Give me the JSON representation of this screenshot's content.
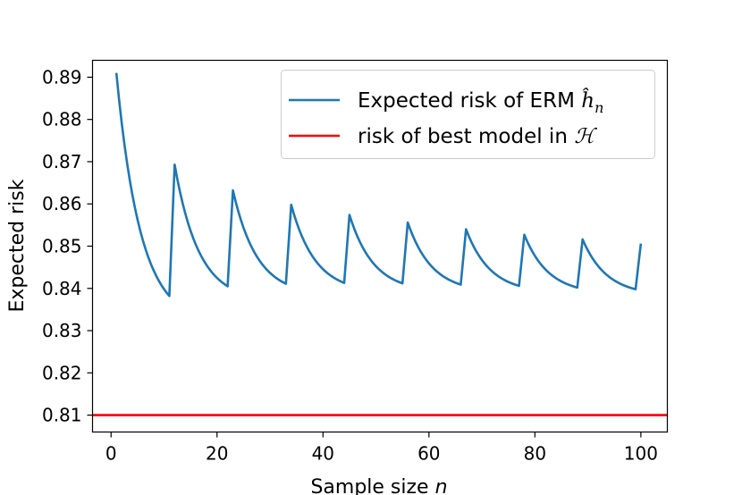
{
  "chart_data": {
    "type": "line",
    "title": "",
    "xlabel": "Sample size",
    "xlabel_var": "n",
    "ylabel": "Expected risk",
    "xlim": [
      -3.5,
      105
    ],
    "ylim": [
      0.806,
      0.894
    ],
    "xticks": [
      0,
      20,
      40,
      60,
      80,
      100
    ],
    "yticks": [
      0.81,
      0.82,
      0.83,
      0.84,
      0.85,
      0.86,
      0.87,
      0.88,
      0.89
    ],
    "grid": false,
    "legend_position": "top-right",
    "series": [
      {
        "name": "Expected risk of ERM",
        "name_math": "ĥ",
        "name_sub": "n",
        "color": "#1f77b4",
        "cycles": [
          {
            "x_start": 1,
            "x_end": 11,
            "y_start": 0.891,
            "y_end": 0.8382
          },
          {
            "x_start": 12,
            "x_end": 22,
            "y_start": 0.8693,
            "y_end": 0.8405
          },
          {
            "x_start": 23,
            "x_end": 33,
            "y_start": 0.8632,
            "y_end": 0.8411
          },
          {
            "x_start": 34,
            "x_end": 44,
            "y_start": 0.8598,
            "y_end": 0.8413
          },
          {
            "x_start": 45,
            "x_end": 55,
            "y_start": 0.8574,
            "y_end": 0.8412
          },
          {
            "x_start": 56,
            "x_end": 66,
            "y_start": 0.8556,
            "y_end": 0.8409
          },
          {
            "x_start": 67,
            "x_end": 77,
            "y_start": 0.854,
            "y_end": 0.8406
          },
          {
            "x_start": 78,
            "x_end": 88,
            "y_start": 0.8527,
            "y_end": 0.8402
          },
          {
            "x_start": 89,
            "x_end": 99,
            "y_start": 0.8516,
            "y_end": 0.8398
          }
        ],
        "final_point": {
          "x": 100,
          "y": 0.8506
        }
      },
      {
        "name": "risk of best model in",
        "name_math": "ℋ",
        "color": "#ff0000",
        "y": 0.81
      }
    ]
  }
}
